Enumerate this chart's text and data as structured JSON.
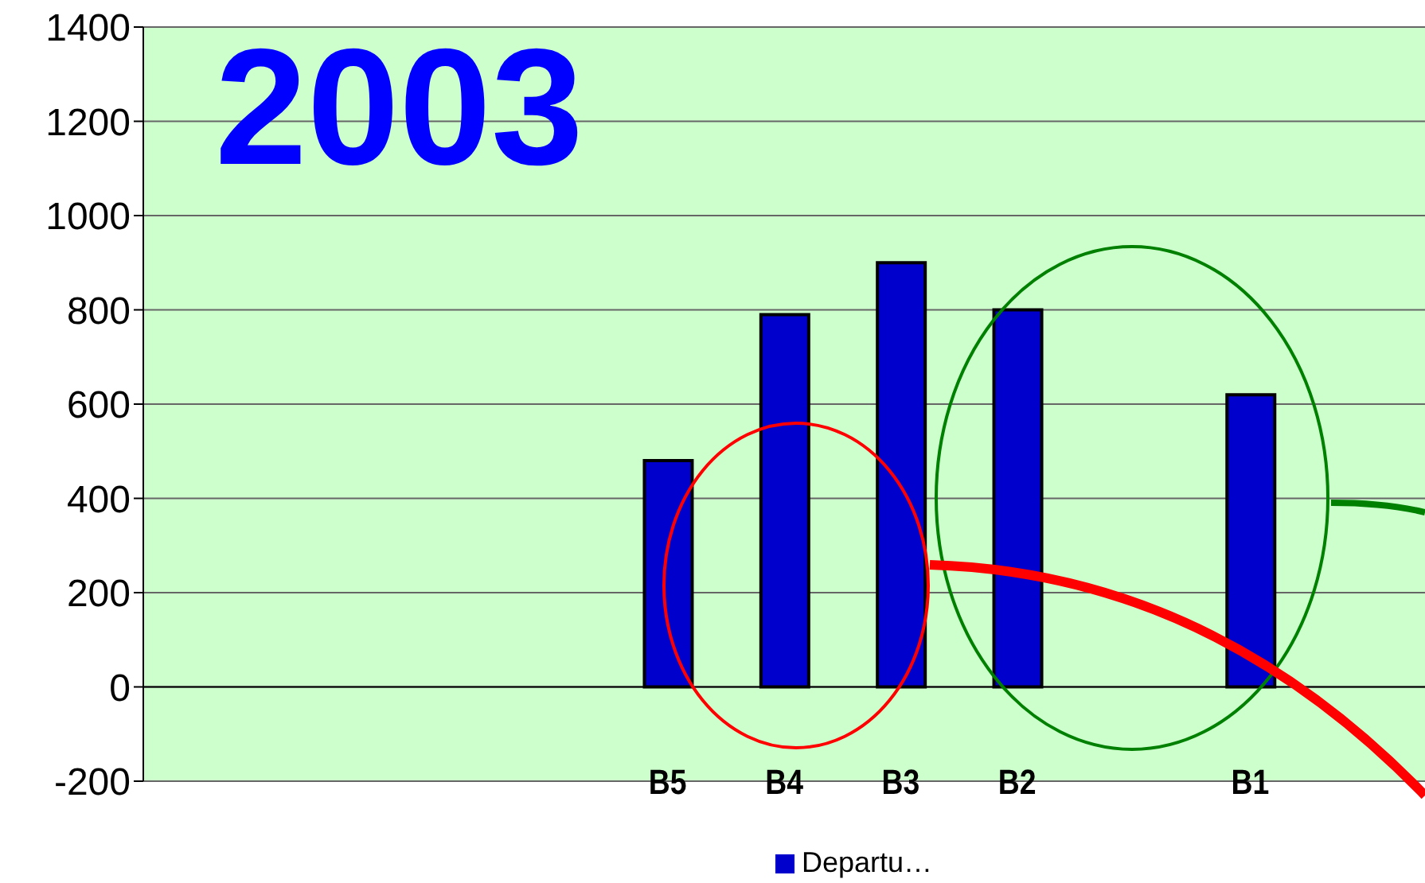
{
  "chart_data": {
    "type": "bar",
    "categories": [
      null,
      null,
      null,
      null,
      "B5",
      "B4",
      "B3",
      "B2",
      null,
      "B1",
      null
    ],
    "series": [
      {
        "name": "Departu…",
        "color": "#0000cc",
        "values": [
          null,
          null,
          null,
          null,
          480,
          790,
          900,
          800,
          null,
          620,
          null
        ]
      }
    ],
    "ylim": [
      -200,
      1400
    ],
    "yticks": [
      -200,
      0,
      200,
      400,
      600,
      800,
      1000,
      1200,
      1400
    ],
    "grid": "y",
    "legend": "bottom",
    "annotations": [
      "2003"
    ]
  }
}
